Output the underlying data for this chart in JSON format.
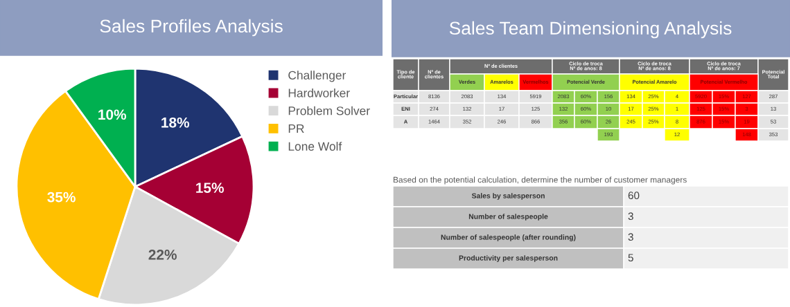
{
  "chart_data": [
    {
      "type": "pie",
      "title": "Sales Profiles Analysis",
      "categories": [
        "Challenger",
        "Hardworker",
        "Problem Solver",
        "PR",
        "Lone Wolf"
      ],
      "values": [
        18,
        15,
        22,
        35,
        10
      ],
      "colors": [
        "#1f3470",
        "#a50034",
        "#d9d9d9",
        "#ffc000",
        "#00b050"
      ],
      "value_labels": [
        "18%",
        "15%",
        "22%",
        "35%",
        "10%"
      ],
      "legend": "right"
    },
    {
      "type": "other",
      "title": "Sales Team Dimensioning Analysis",
      "annotations": [
        "Tipo de\ncliente",
        "Nº de\nclientes",
        "Nº de clientes",
        "Ciclo de troca\nNº de anos: 8",
        "Ciclo de troca\nNº de anos: 8",
        "Ciclo de troca\nNº de anos: 7",
        "Potencial\nTotal",
        "Verdes",
        "Amarelos",
        "Vermelhos",
        "Potencial Verde",
        "Potencial Amarelo",
        "Potencial Vermelho",
        "Particular",
        "8136",
        "2083",
        "134",
        "5919",
        "2083",
        "60%",
        "156",
        "134",
        "25%",
        "4",
        "5920",
        "15%",
        "127",
        "287",
        "ENI",
        "274",
        "132",
        "17",
        "125",
        "132",
        "60%",
        "10",
        "17",
        "25%",
        "1",
        "125",
        "15%",
        "3",
        "13",
        "A",
        "1464",
        "352",
        "246",
        "866",
        "356",
        "60%",
        "26",
        "245",
        "25%",
        "8",
        "876",
        "15%",
        "19",
        "53",
        "193",
        "12",
        "148",
        "353",
        "Based on the potential calculation, determine the number of customer managers",
        "Sales by salesperson",
        "60",
        "Number of salespeople",
        "3",
        "Number of salespeople (after rounding)",
        "3",
        "Productivity per salesperson",
        "5"
      ]
    }
  ]
}
